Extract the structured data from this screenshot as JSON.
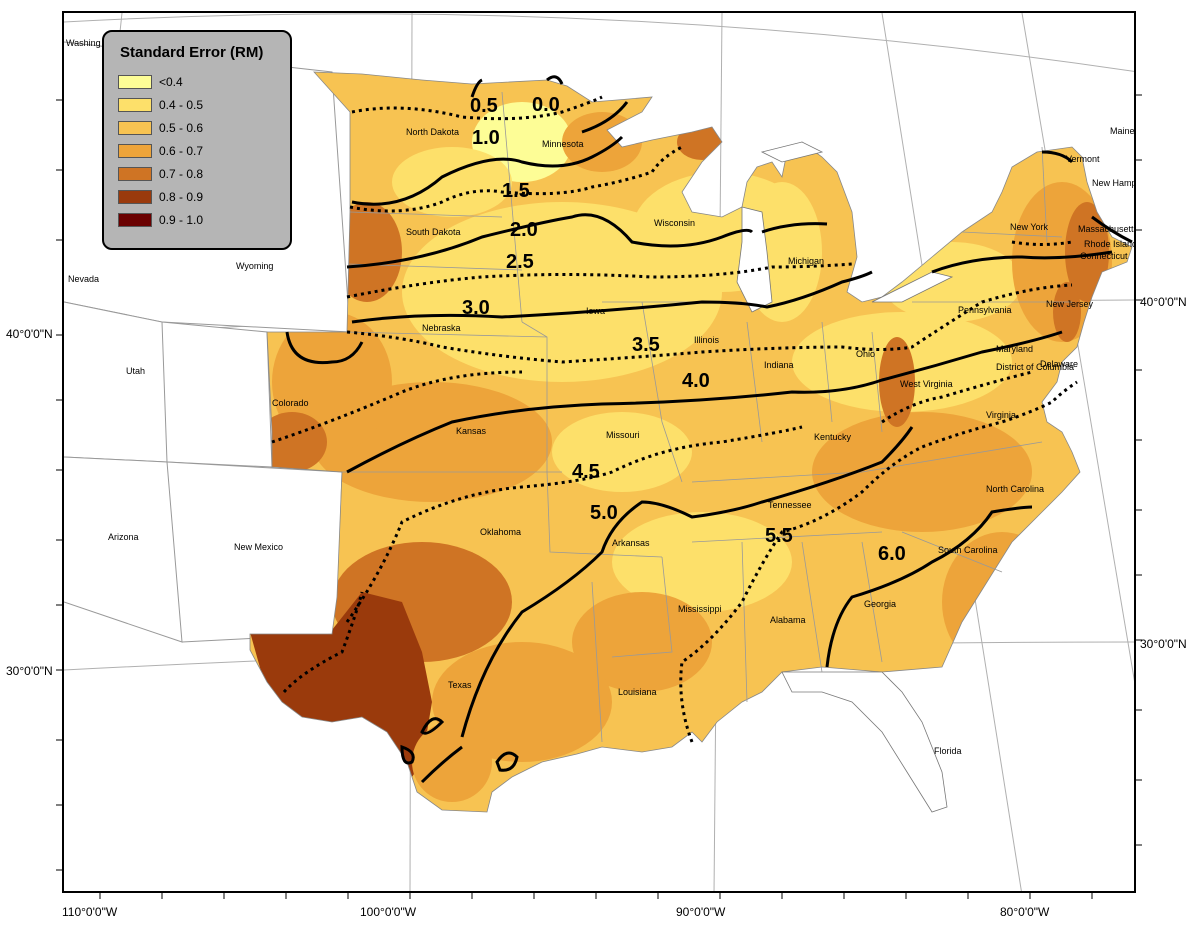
{
  "legend": {
    "title": "Standard Error (RM)",
    "items": [
      {
        "label": "<0.4",
        "color": "#fdfd96"
      },
      {
        "label": "0.4 - 0.5",
        "color": "#fde06a"
      },
      {
        "label": "0.5 - 0.6",
        "color": "#f7c352"
      },
      {
        "label": "0.6 - 0.7",
        "color": "#eda43a"
      },
      {
        "label": "0.7 - 0.8",
        "color": "#cf7424"
      },
      {
        "label": "0.8 - 0.9",
        "color": "#9a3a0c"
      },
      {
        "label": "0.9 - 1.0",
        "color": "#6a0000"
      }
    ]
  },
  "axes": {
    "longitude_labels": [
      "110°0'0\"W",
      "100°0'0\"W",
      "90°0'0\"W",
      "80°0'0\"W"
    ],
    "latitude_labels_left": [
      "40°0'0\"N",
      "30°0'0\"N"
    ],
    "latitude_labels_right": [
      "40°0'0\"N",
      "30°0'0\"N"
    ]
  },
  "contours": {
    "labels": [
      "0.0",
      "0.5",
      "1.0",
      "1.5",
      "2.0",
      "2.5",
      "3.0",
      "3.5",
      "4.0",
      "4.5",
      "5.0",
      "5.5",
      "6.0"
    ]
  },
  "states": [
    "Washing",
    "Nevada",
    "Utah",
    "Arizona",
    "Wyoming",
    "Colorado",
    "New Mexico",
    "North Dakota",
    "South Dakota",
    "Nebraska",
    "Kansas",
    "Oklahoma",
    "Texas",
    "Minnesota",
    "Iowa",
    "Missouri",
    "Arkansas",
    "Louisiana",
    "Wisconsin",
    "Illinois",
    "Mississippi",
    "Michigan",
    "Indiana",
    "Kentucky",
    "Tennessee",
    "Alabama",
    "Ohio",
    "West Virginia",
    "Georgia",
    "Florida",
    "Pennsylvania",
    "Virginia",
    "North Carolina",
    "South Carolina",
    "New York",
    "Maryland",
    "District of Columbia",
    "Delaware",
    "New Jersey",
    "Connecticut",
    "Rhode Island",
    "Massachusetts",
    "Vermont",
    "New Hampshire",
    "Maine"
  ]
}
